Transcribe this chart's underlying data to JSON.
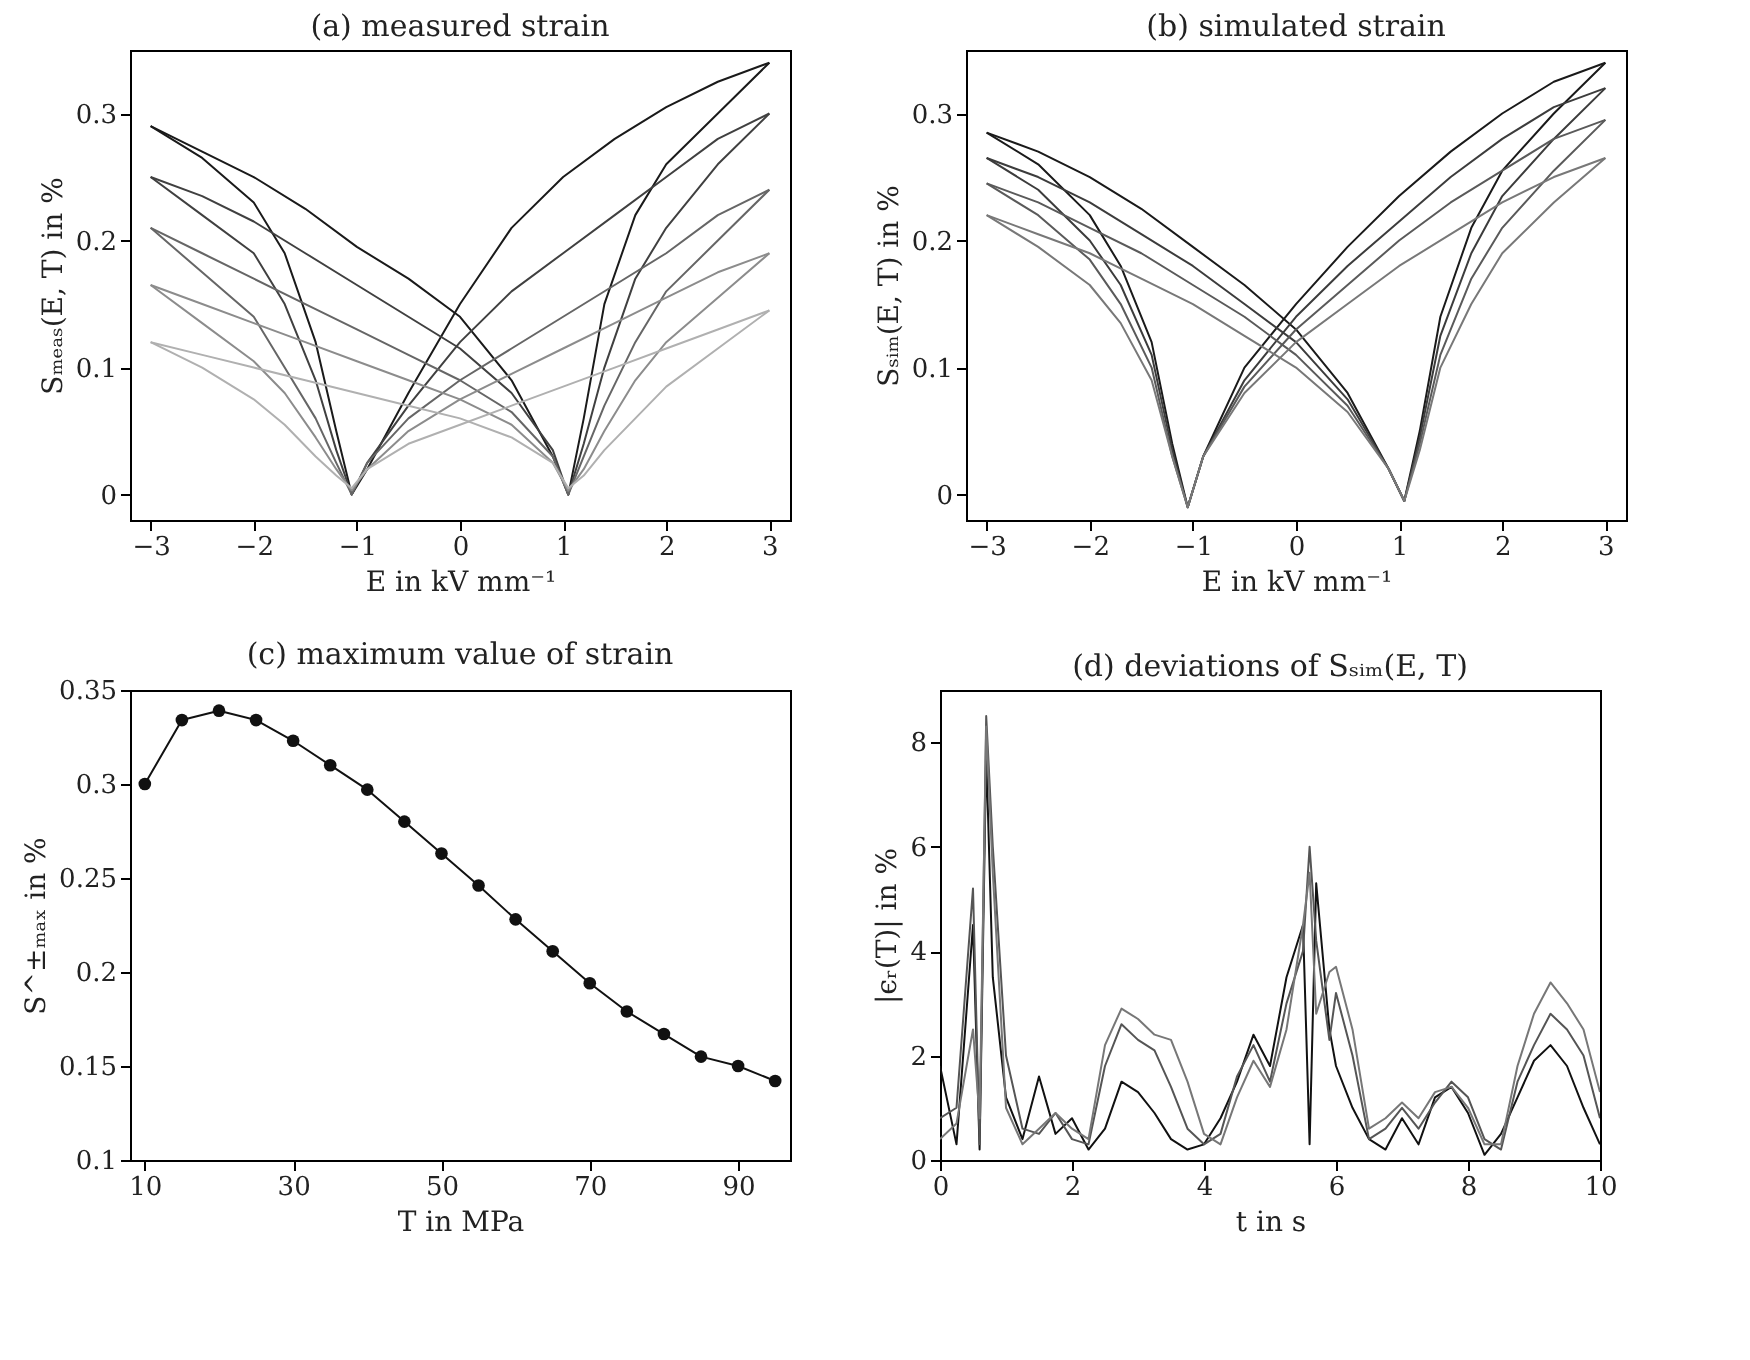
{
  "chart_data": [
    {
      "type": "line",
      "title": "(a) measured strain",
      "xlabel": "E in kV mm⁻¹",
      "ylabel": "Sₘₑₐₛ(E, T) in %",
      "xlim": [
        -3.2,
        3.2
      ],
      "ylim": [
        -0.02,
        0.35
      ],
      "xticks": [
        -3,
        -2,
        -1,
        0,
        1,
        2,
        3
      ],
      "yticks": [
        0,
        0.1,
        0.2,
        0.3
      ],
      "grid": false,
      "legend": false,
      "marker": "none",
      "line_style": "solid",
      "series": [
        {
          "color": "#1a1a1a",
          "x": [
            -3,
            -2.5,
            -2,
            -1.5,
            -1,
            -0.5,
            0,
            0.5,
            0.9,
            1.05,
            1.2,
            1.4,
            1.7,
            2,
            2.5,
            3
          ],
          "values": [
            0.29,
            0.27,
            0.25,
            0.225,
            0.195,
            0.17,
            0.14,
            0.09,
            0.03,
            0.0,
            0.06,
            0.15,
            0.22,
            0.26,
            0.3,
            0.34
          ]
        },
        {
          "color": "#1a1a1a",
          "x": [
            -3,
            -2.5,
            -2,
            -1.7,
            -1.4,
            -1.2,
            -1.05,
            -0.9,
            -0.5,
            0,
            0.5,
            1,
            1.5,
            2,
            2.5,
            3
          ],
          "values": [
            0.29,
            0.265,
            0.23,
            0.19,
            0.12,
            0.05,
            0.0,
            0.02,
            0.08,
            0.15,
            0.21,
            0.25,
            0.28,
            0.305,
            0.325,
            0.34
          ]
        },
        {
          "color": "#404040",
          "x": [
            -3,
            -2.5,
            -2,
            -1.5,
            -1,
            -0.5,
            0,
            0.5,
            0.9,
            1.05,
            1.2,
            1.4,
            1.7,
            2,
            2.5,
            3
          ],
          "values": [
            0.25,
            0.235,
            0.215,
            0.19,
            0.165,
            0.14,
            0.115,
            0.08,
            0.035,
            0.0,
            0.04,
            0.1,
            0.17,
            0.21,
            0.26,
            0.3
          ]
        },
        {
          "color": "#404040",
          "x": [
            -3,
            -2.5,
            -2,
            -1.7,
            -1.4,
            -1.2,
            -1.05,
            -0.9,
            -0.5,
            0,
            0.5,
            1,
            1.5,
            2,
            2.5,
            3
          ],
          "values": [
            0.25,
            0.22,
            0.19,
            0.15,
            0.09,
            0.035,
            0.0,
            0.025,
            0.07,
            0.12,
            0.16,
            0.19,
            0.22,
            0.25,
            0.28,
            0.3
          ]
        },
        {
          "color": "#666666",
          "x": [
            -3,
            -2.5,
            -2,
            -1.5,
            -1,
            -0.5,
            0,
            0.5,
            0.9,
            1.05,
            1.2,
            1.4,
            1.7,
            2,
            2.5,
            3
          ],
          "values": [
            0.21,
            0.19,
            0.17,
            0.15,
            0.13,
            0.11,
            0.09,
            0.065,
            0.03,
            0.0,
            0.03,
            0.07,
            0.12,
            0.16,
            0.2,
            0.24
          ]
        },
        {
          "color": "#666666",
          "x": [
            -3,
            -2.5,
            -2,
            -1.7,
            -1.4,
            -1.2,
            -1.05,
            -0.9,
            -0.5,
            0,
            0.5,
            1,
            1.5,
            2,
            2.5,
            3
          ],
          "values": [
            0.21,
            0.175,
            0.14,
            0.1,
            0.06,
            0.025,
            0.0,
            0.025,
            0.06,
            0.09,
            0.115,
            0.14,
            0.165,
            0.19,
            0.22,
            0.24
          ]
        },
        {
          "color": "#8c8c8c",
          "x": [
            -3,
            -2.5,
            -2,
            -1.5,
            -1,
            -0.5,
            0,
            0.5,
            0.9,
            1.05,
            1.2,
            1.4,
            1.7,
            2,
            2.5,
            3
          ],
          "values": [
            0.165,
            0.15,
            0.135,
            0.12,
            0.105,
            0.09,
            0.075,
            0.055,
            0.025,
            0.003,
            0.02,
            0.05,
            0.09,
            0.12,
            0.155,
            0.19
          ]
        },
        {
          "color": "#8c8c8c",
          "x": [
            -3,
            -2.5,
            -2,
            -1.7,
            -1.4,
            -1.2,
            -1.05,
            -0.9,
            -0.5,
            0,
            0.5,
            1,
            1.5,
            2,
            2.5,
            3
          ],
          "values": [
            0.165,
            0.135,
            0.105,
            0.08,
            0.045,
            0.02,
            0.003,
            0.02,
            0.05,
            0.075,
            0.095,
            0.115,
            0.135,
            0.155,
            0.175,
            0.19
          ]
        },
        {
          "color": "#b0b0b0",
          "x": [
            -3,
            -2.5,
            -2,
            -1.5,
            -1,
            -0.5,
            0,
            0.5,
            0.9,
            1.05,
            1.2,
            1.4,
            1.7,
            2,
            2.5,
            3
          ],
          "values": [
            0.12,
            0.11,
            0.1,
            0.09,
            0.08,
            0.07,
            0.06,
            0.045,
            0.025,
            0.005,
            0.015,
            0.035,
            0.06,
            0.085,
            0.115,
            0.145
          ]
        },
        {
          "color": "#b0b0b0",
          "x": [
            -3,
            -2.5,
            -2,
            -1.7,
            -1.4,
            -1.2,
            -1.05,
            -0.9,
            -0.5,
            0,
            0.5,
            1,
            1.5,
            2,
            2.5,
            3
          ],
          "values": [
            0.12,
            0.1,
            0.075,
            0.055,
            0.03,
            0.015,
            0.005,
            0.02,
            0.04,
            0.055,
            0.07,
            0.085,
            0.1,
            0.115,
            0.13,
            0.145
          ]
        }
      ]
    },
    {
      "type": "line",
      "title": "(b) simulated strain",
      "xlabel": "E in kV mm⁻¹",
      "ylabel": "Sₛᵢₘ(E, T) in %",
      "xlim": [
        -3.2,
        3.2
      ],
      "ylim": [
        -0.02,
        0.35
      ],
      "xticks": [
        -3,
        -2,
        -1,
        0,
        1,
        2,
        3
      ],
      "yticks": [
        0,
        0.1,
        0.2,
        0.3
      ],
      "grid": false,
      "legend": false,
      "marker": "none",
      "line_style": "solid",
      "series": [
        {
          "color": "#1a1a1a",
          "x": [
            -3,
            -2.5,
            -2,
            -1.5,
            -1,
            -0.5,
            0,
            0.5,
            0.9,
            1.05,
            1.2,
            1.4,
            1.7,
            2,
            2.5,
            3
          ],
          "values": [
            0.285,
            0.27,
            0.25,
            0.225,
            0.195,
            0.165,
            0.13,
            0.08,
            0.02,
            -0.005,
            0.05,
            0.14,
            0.21,
            0.255,
            0.3,
            0.34
          ]
        },
        {
          "color": "#1a1a1a",
          "x": [
            -3,
            -2.5,
            -2,
            -1.7,
            -1.4,
            -1.2,
            -1.05,
            -0.9,
            -0.5,
            0,
            0.5,
            1,
            1.5,
            2,
            2.5,
            3
          ],
          "values": [
            0.285,
            0.26,
            0.22,
            0.18,
            0.12,
            0.04,
            -0.01,
            0.03,
            0.1,
            0.15,
            0.195,
            0.235,
            0.27,
            0.3,
            0.325,
            0.34
          ]
        },
        {
          "color": "#3c3c3c",
          "x": [
            -3,
            -2.5,
            -2,
            -1.5,
            -1,
            -0.5,
            0,
            0.5,
            0.9,
            1.05,
            1.2,
            1.4,
            1.7,
            2,
            2.5,
            3
          ],
          "values": [
            0.265,
            0.25,
            0.23,
            0.205,
            0.18,
            0.15,
            0.12,
            0.075,
            0.02,
            -0.005,
            0.045,
            0.125,
            0.19,
            0.235,
            0.28,
            0.32
          ]
        },
        {
          "color": "#3c3c3c",
          "x": [
            -3,
            -2.5,
            -2,
            -1.7,
            -1.4,
            -1.2,
            -1.05,
            -0.9,
            -0.5,
            0,
            0.5,
            1,
            1.5,
            2,
            2.5,
            3
          ],
          "values": [
            0.265,
            0.24,
            0.2,
            0.165,
            0.11,
            0.035,
            -0.01,
            0.03,
            0.09,
            0.14,
            0.18,
            0.215,
            0.25,
            0.28,
            0.305,
            0.32
          ]
        },
        {
          "color": "#5a5a5a",
          "x": [
            -3,
            -2.5,
            -2,
            -1.5,
            -1,
            -0.5,
            0,
            0.5,
            0.9,
            1.05,
            1.2,
            1.4,
            1.7,
            2,
            2.5,
            3
          ],
          "values": [
            0.245,
            0.23,
            0.21,
            0.19,
            0.165,
            0.14,
            0.11,
            0.07,
            0.02,
            -0.005,
            0.04,
            0.11,
            0.17,
            0.21,
            0.255,
            0.295
          ]
        },
        {
          "color": "#5a5a5a",
          "x": [
            -3,
            -2.5,
            -2,
            -1.7,
            -1.4,
            -1.2,
            -1.05,
            -0.9,
            -0.5,
            0,
            0.5,
            1,
            1.5,
            2,
            2.5,
            3
          ],
          "values": [
            0.245,
            0.22,
            0.185,
            0.15,
            0.1,
            0.03,
            -0.01,
            0.03,
            0.085,
            0.13,
            0.165,
            0.2,
            0.23,
            0.255,
            0.28,
            0.295
          ]
        },
        {
          "color": "#787878",
          "x": [
            -3,
            -2.5,
            -2,
            -1.5,
            -1,
            -0.5,
            0,
            0.5,
            0.9,
            1.05,
            1.2,
            1.4,
            1.7,
            2,
            2.5,
            3
          ],
          "values": [
            0.22,
            0.205,
            0.19,
            0.17,
            0.15,
            0.125,
            0.1,
            0.065,
            0.02,
            -0.005,
            0.035,
            0.1,
            0.15,
            0.19,
            0.23,
            0.265
          ]
        },
        {
          "color": "#787878",
          "x": [
            -3,
            -2.5,
            -2,
            -1.7,
            -1.4,
            -1.2,
            -1.05,
            -0.9,
            -0.5,
            0,
            0.5,
            1,
            1.5,
            2,
            2.5,
            3
          ],
          "values": [
            0.22,
            0.195,
            0.165,
            0.135,
            0.09,
            0.03,
            -0.01,
            0.03,
            0.08,
            0.12,
            0.15,
            0.18,
            0.205,
            0.23,
            0.25,
            0.265
          ]
        }
      ]
    },
    {
      "type": "line",
      "title": "(c) maximum value of strain",
      "xlabel": "T in MPa",
      "ylabel": "S^±ₘₐₓ in %",
      "xlim": [
        8,
        97
      ],
      "ylim": [
        0.1,
        0.35
      ],
      "xticks": [
        10,
        30,
        50,
        70,
        90
      ],
      "yticks": [
        0.1,
        0.15,
        0.2,
        0.25,
        0.3,
        0.35
      ],
      "grid": false,
      "legend": false,
      "marker": "circle",
      "line_style": "solid",
      "x": [
        10,
        15,
        20,
        25,
        30,
        35,
        40,
        45,
        50,
        55,
        60,
        65,
        70,
        75,
        80,
        85,
        90,
        95
      ],
      "series": [
        {
          "color": "#111111",
          "values": [
            0.3,
            0.334,
            0.339,
            0.334,
            0.323,
            0.31,
            0.297,
            0.28,
            0.263,
            0.246,
            0.228,
            0.211,
            0.194,
            0.179,
            0.167,
            0.155,
            0.15,
            0.142
          ]
        }
      ]
    },
    {
      "type": "line",
      "title": "(d) deviations of Sₛᵢₘ(E, T)",
      "xlabel": "t in s",
      "ylabel": "|ϵᵣ(T)| in %",
      "xlim": [
        0,
        10
      ],
      "ylim": [
        0,
        9
      ],
      "xticks": [
        0,
        2,
        4,
        6,
        8,
        10
      ],
      "yticks": [
        0,
        2,
        4,
        6,
        8
      ],
      "grid": false,
      "legend": false,
      "marker": "none",
      "line_style": "solid",
      "x": [
        0,
        0.25,
        0.5,
        0.6,
        0.7,
        0.8,
        1,
        1.25,
        1.5,
        1.75,
        2,
        2.25,
        2.5,
        2.75,
        3,
        3.25,
        3.5,
        3.75,
        4,
        4.25,
        4.5,
        4.75,
        5,
        5.25,
        5.5,
        5.6,
        5.7,
        5.9,
        6,
        6.25,
        6.5,
        6.75,
        7,
        7.25,
        7.5,
        7.75,
        8,
        8.25,
        8.5,
        8.75,
        9,
        9.25,
        9.5,
        9.75,
        10
      ],
      "series": [
        {
          "color": "#111111",
          "values": [
            1.8,
            0.3,
            4.5,
            0.2,
            7.8,
            3.5,
            1.2,
            0.4,
            1.6,
            0.5,
            0.8,
            0.2,
            0.6,
            1.5,
            1.3,
            0.9,
            0.4,
            0.2,
            0.3,
            0.8,
            1.5,
            2.4,
            1.8,
            3.5,
            4.5,
            0.3,
            5.3,
            2.5,
            1.8,
            1.0,
            0.4,
            0.2,
            0.8,
            0.3,
            1.2,
            1.4,
            0.9,
            0.1,
            0.5,
            1.2,
            1.9,
            2.2,
            1.8,
            1.0,
            0.3
          ]
        },
        {
          "color": "#555555",
          "values": [
            0.8,
            1.0,
            5.2,
            0.3,
            8.5,
            6.0,
            2.0,
            0.6,
            0.5,
            0.9,
            0.4,
            0.3,
            1.8,
            2.6,
            2.3,
            2.1,
            1.4,
            0.6,
            0.3,
            0.5,
            1.6,
            2.2,
            1.5,
            3.0,
            4.0,
            6.0,
            4.2,
            2.3,
            3.2,
            2.0,
            0.4,
            0.6,
            1.0,
            0.6,
            1.1,
            1.5,
            1.2,
            0.4,
            0.2,
            1.5,
            2.2,
            2.8,
            2.5,
            2.0,
            0.8
          ]
        },
        {
          "color": "#777777",
          "values": [
            0.4,
            0.7,
            2.5,
            0.8,
            8.3,
            5.5,
            1.0,
            0.3,
            0.6,
            0.9,
            0.6,
            0.4,
            2.2,
            2.9,
            2.7,
            2.4,
            2.3,
            1.5,
            0.5,
            0.3,
            1.2,
            1.9,
            1.4,
            2.5,
            4.5,
            5.5,
            2.8,
            3.6,
            3.7,
            2.5,
            0.6,
            0.8,
            1.1,
            0.8,
            1.3,
            1.4,
            1.0,
            0.3,
            0.3,
            1.8,
            2.8,
            3.4,
            3.0,
            2.5,
            1.3
          ]
        }
      ]
    }
  ]
}
